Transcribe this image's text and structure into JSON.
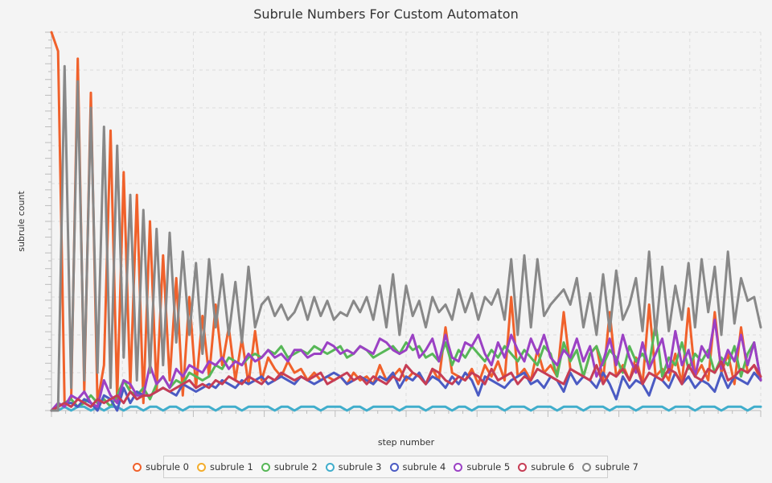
{
  "chart_data": {
    "type": "line",
    "title": "Subrule Numbers For Custom Automaton",
    "xlabel": "step number",
    "ylabel": "subrule count",
    "tick_labels_visible": false,
    "grid": true,
    "legend": "bottom",
    "series": [
      {
        "name": "subrule 0",
        "color": "#f0612b",
        "values": [
          100,
          95,
          2,
          3,
          93,
          5,
          84,
          2,
          12,
          74,
          3,
          63,
          6,
          57,
          2,
          50,
          5,
          41,
          8,
          35,
          4,
          30,
          6,
          25,
          9,
          28,
          12,
          22,
          8,
          19,
          7,
          21,
          8,
          14,
          11,
          9,
          13,
          10,
          11,
          8,
          10,
          8,
          9,
          8,
          9,
          7,
          10,
          8,
          9,
          7,
          12,
          8,
          9,
          11,
          8,
          10,
          9,
          7,
          11,
          8,
          22,
          10,
          9,
          8,
          11,
          7,
          12,
          9,
          13,
          8,
          30,
          9,
          11,
          8,
          16,
          10,
          12,
          9,
          26,
          11,
          10,
          9,
          15,
          17,
          8,
          26,
          9,
          12,
          8,
          14,
          7,
          28,
          9,
          11,
          8,
          15,
          7,
          27,
          9,
          12,
          8,
          26,
          10,
          15,
          7,
          22,
          10,
          12,
          8
        ]
      },
      {
        "name": "subrule 2",
        "color": "#57b757",
        "values": [
          0,
          1,
          2,
          3,
          1,
          2,
          4,
          2,
          3,
          1,
          4,
          8,
          5,
          4,
          6,
          3,
          7,
          9,
          6,
          8,
          7,
          10,
          9,
          8,
          9,
          12,
          11,
          14,
          13,
          12,
          14,
          15,
          14,
          16,
          15,
          17,
          14,
          15,
          16,
          15,
          17,
          16,
          15,
          16,
          17,
          14,
          15,
          17,
          16,
          14,
          15,
          16,
          17,
          15,
          18,
          16,
          17,
          14,
          15,
          13,
          18,
          12,
          16,
          14,
          17,
          15,
          13,
          16,
          14,
          17,
          15,
          13,
          16,
          14,
          12,
          17,
          15,
          9,
          18,
          13,
          16,
          9,
          15,
          17,
          12,
          16,
          14,
          10,
          17,
          13,
          15,
          12,
          23,
          9,
          14,
          12,
          18,
          11,
          15,
          13,
          16,
          10,
          14,
          12,
          17,
          9,
          15,
          18,
          8
        ]
      },
      {
        "name": "subrule 3",
        "color": "#41aecc",
        "values": [
          0,
          0,
          1,
          0,
          1,
          1,
          0,
          1,
          0,
          1,
          1,
          0,
          1,
          1,
          0,
          1,
          1,
          0,
          1,
          1,
          0,
          1,
          1,
          1,
          1,
          0,
          1,
          1,
          1,
          0,
          1,
          1,
          1,
          1,
          0,
          1,
          1,
          0,
          1,
          1,
          1,
          0,
          1,
          1,
          1,
          0,
          1,
          1,
          0,
          1,
          1,
          1,
          1,
          0,
          1,
          1,
          1,
          0,
          1,
          1,
          1,
          0,
          1,
          1,
          0,
          1,
          1,
          1,
          1,
          0,
          1,
          1,
          1,
          0,
          1,
          1,
          1,
          0,
          1,
          1,
          1,
          0,
          1,
          1,
          1,
          0,
          1,
          1,
          1,
          0,
          1,
          1,
          1,
          1,
          0,
          1,
          1,
          1,
          0,
          1,
          1,
          1,
          0,
          1,
          1,
          1,
          0,
          1,
          1
        ]
      },
      {
        "name": "subrule 4",
        "color": "#4b5bc3",
        "values": [
          0,
          1,
          2,
          2,
          1,
          3,
          2,
          0,
          4,
          3,
          0,
          6,
          2,
          5,
          4,
          4,
          5,
          6,
          5,
          4,
          7,
          6,
          5,
          6,
          7,
          6,
          8,
          7,
          6,
          8,
          7,
          8,
          9,
          7,
          8,
          9,
          8,
          7,
          9,
          8,
          7,
          8,
          9,
          10,
          9,
          7,
          8,
          9,
          8,
          7,
          9,
          8,
          10,
          6,
          9,
          8,
          10,
          7,
          9,
          8,
          6,
          9,
          7,
          10,
          8,
          4,
          9,
          8,
          7,
          6,
          8,
          9,
          10,
          7,
          8,
          6,
          9,
          8,
          5,
          10,
          7,
          9,
          8,
          6,
          10,
          7,
          3,
          9,
          6,
          8,
          7,
          4,
          9,
          8,
          6,
          10,
          7,
          9,
          6,
          8,
          7,
          5,
          10,
          6,
          9,
          8,
          7,
          10,
          8
        ]
      },
      {
        "name": "subrule 5",
        "color": "#9b41c4",
        "values": [
          0,
          2,
          1,
          4,
          3,
          5,
          2,
          1,
          8,
          4,
          2,
          8,
          7,
          4,
          4,
          12,
          7,
          9,
          6,
          11,
          9,
          12,
          11,
          10,
          13,
          12,
          14,
          11,
          13,
          12,
          15,
          13,
          14,
          16,
          14,
          15,
          13,
          16,
          16,
          14,
          15,
          15,
          18,
          17,
          15,
          16,
          15,
          17,
          16,
          15,
          19,
          18,
          16,
          15,
          16,
          20,
          14,
          16,
          19,
          13,
          20,
          14,
          13,
          18,
          17,
          20,
          15,
          12,
          18,
          14,
          20,
          16,
          13,
          19,
          15,
          20,
          14,
          12,
          16,
          14,
          19,
          13,
          17,
          9,
          13,
          19,
          12,
          20,
          14,
          10,
          18,
          11,
          15,
          19,
          10,
          21,
          12,
          16,
          9,
          17,
          14,
          24,
          11,
          16,
          13,
          20,
          12,
          18,
          8
        ]
      },
      {
        "name": "subrule 6",
        "color": "#c63d55",
        "values": [
          0,
          1,
          2,
          1,
          3,
          2,
          1,
          3,
          2,
          3,
          4,
          2,
          5,
          3,
          4,
          4,
          5,
          6,
          5,
          6,
          7,
          8,
          6,
          7,
          6,
          8,
          7,
          9,
          8,
          7,
          9,
          8,
          7,
          9,
          8,
          10,
          9,
          8,
          9,
          8,
          9,
          10,
          7,
          8,
          9,
          10,
          8,
          9,
          7,
          9,
          8,
          7,
          9,
          8,
          12,
          10,
          9,
          7,
          11,
          10,
          8,
          7,
          9,
          8,
          10,
          9,
          7,
          11,
          8,
          9,
          10,
          7,
          9,
          8,
          11,
          10,
          9,
          8,
          7,
          11,
          10,
          9,
          8,
          12,
          7,
          10,
          9,
          11,
          8,
          12,
          7,
          10,
          9,
          8,
          11,
          10,
          7,
          12,
          9,
          8,
          11,
          10,
          13,
          8,
          9,
          11,
          10,
          12,
          9
        ]
      },
      {
        "name": "subrule 7",
        "color": "#888888",
        "values": [
          0,
          0,
          91,
          6,
          87,
          8,
          80,
          10,
          75,
          6,
          70,
          14,
          57,
          8,
          53,
          10,
          48,
          12,
          47,
          18,
          42,
          20,
          39,
          15,
          40,
          22,
          36,
          20,
          34,
          18,
          38,
          22,
          28,
          30,
          25,
          28,
          24,
          26,
          30,
          24,
          30,
          25,
          29,
          24,
          26,
          25,
          29,
          26,
          30,
          24,
          33,
          22,
          36,
          20,
          33,
          25,
          29,
          22,
          30,
          26,
          28,
          24,
          32,
          26,
          31,
          24,
          30,
          28,
          32,
          24,
          40,
          20,
          41,
          22,
          40,
          25,
          28,
          30,
          32,
          28,
          35,
          22,
          31,
          20,
          36,
          21,
          37,
          24,
          28,
          35,
          21,
          42,
          20,
          38,
          21,
          33,
          24,
          39,
          22,
          40,
          26,
          38,
          20,
          42,
          23,
          35,
          29,
          30,
          22
        ]
      }
    ],
    "ylim": [
      0,
      100
    ]
  },
  "legend": {
    "items": [
      {
        "label": "subrule 0",
        "color": "#f0612b"
      },
      {
        "label": "subrule 1",
        "color": "#f3ad2d"
      },
      {
        "label": "subrule 2",
        "color": "#57b757"
      },
      {
        "label": "subrule 3",
        "color": "#41aecc"
      },
      {
        "label": "subrule 4",
        "color": "#4b5bc3"
      },
      {
        "label": "subrule 5",
        "color": "#9b41c4"
      },
      {
        "label": "subrule 6",
        "color": "#c63d55"
      },
      {
        "label": "subrule 7",
        "color": "#888888"
      }
    ]
  }
}
